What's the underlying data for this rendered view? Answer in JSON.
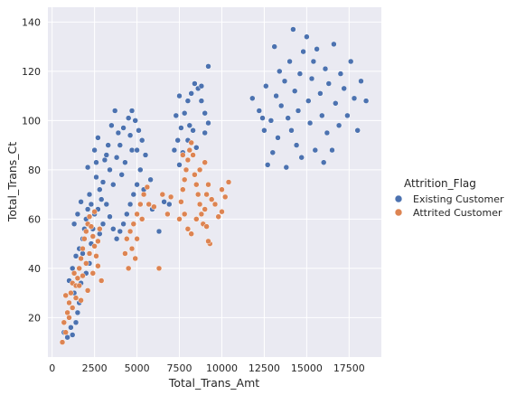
{
  "chart_data": {
    "type": "scatter",
    "title": "",
    "xlabel": "Total_Trans_Amt",
    "ylabel": "Total_Trans_Ct",
    "xlim": [
      -250,
      19400
    ],
    "ylim": [
      4,
      146
    ],
    "xticks": [
      0,
      2500,
      5000,
      7500,
      10000,
      12500,
      15000,
      17500
    ],
    "xtick_labels": [
      "0",
      "2500",
      "5000",
      "7500",
      "10000",
      "12500",
      "15000",
      "17500"
    ],
    "yticks": [
      20,
      40,
      60,
      80,
      100,
      120,
      140
    ],
    "ytick_labels": [
      "20",
      "40",
      "60",
      "80",
      "100",
      "120",
      "140"
    ],
    "grid": true,
    "background": "#eaeaf2",
    "legend": {
      "title": "Attrition_Flag",
      "placement": "right, outside plot",
      "entries": [
        "Existing Customer",
        "Attrited Customer"
      ]
    },
    "series": [
      {
        "name": "Existing Customer",
        "color": "#4c72b0",
        "points": [
          [
            700,
            14
          ],
          [
            900,
            12
          ],
          [
            1100,
            16
          ],
          [
            1200,
            13
          ],
          [
            1400,
            18
          ],
          [
            1500,
            22
          ],
          [
            1600,
            26
          ],
          [
            1300,
            30
          ],
          [
            1000,
            35
          ],
          [
            1200,
            40
          ],
          [
            1400,
            45
          ],
          [
            1600,
            48
          ],
          [
            1800,
            52
          ],
          [
            1900,
            56
          ],
          [
            2000,
            60
          ],
          [
            2100,
            64
          ],
          [
            1700,
            67
          ],
          [
            1500,
            62
          ],
          [
            1300,
            58
          ],
          [
            1800,
            46
          ],
          [
            2200,
            42
          ],
          [
            2000,
            38
          ],
          [
            1700,
            34
          ],
          [
            2300,
            50
          ],
          [
            2400,
            56
          ],
          [
            2200,
            70
          ],
          [
            2100,
            81
          ],
          [
            2500,
            88
          ],
          [
            2700,
            93
          ],
          [
            2600,
            77
          ],
          [
            2800,
            72
          ],
          [
            3000,
            75
          ],
          [
            2900,
            68
          ],
          [
            2700,
            64
          ],
          [
            2500,
            62
          ],
          [
            3100,
            84
          ],
          [
            3300,
            90
          ],
          [
            3500,
            98
          ],
          [
            3700,
            104
          ],
          [
            3400,
            80
          ],
          [
            3600,
            74
          ],
          [
            3800,
            85
          ],
          [
            4000,
            90
          ],
          [
            4200,
            97
          ],
          [
            4500,
            101
          ],
          [
            4700,
            104
          ],
          [
            4900,
            100
          ],
          [
            5100,
            96
          ],
          [
            5300,
            92
          ],
          [
            5500,
            86
          ],
          [
            5200,
            80
          ],
          [
            5000,
            74
          ],
          [
            4800,
            70
          ],
          [
            4600,
            66
          ],
          [
            4400,
            62
          ],
          [
            4200,
            58
          ],
          [
            4000,
            55
          ],
          [
            3800,
            52
          ],
          [
            3600,
            56
          ],
          [
            3400,
            61
          ],
          [
            3200,
            66
          ],
          [
            3000,
            58
          ],
          [
            2800,
            54
          ],
          [
            4100,
            78
          ],
          [
            4300,
            83
          ],
          [
            4700,
            88
          ],
          [
            5400,
            72
          ],
          [
            5800,
            76
          ],
          [
            5900,
            64
          ],
          [
            3900,
            95
          ],
          [
            4600,
            94
          ],
          [
            5000,
            88
          ],
          [
            2600,
            83
          ],
          [
            3200,
            86
          ],
          [
            2300,
            66
          ],
          [
            6300,
            55
          ],
          [
            6600,
            67
          ],
          [
            6900,
            66
          ],
          [
            7200,
            88
          ],
          [
            7400,
            92
          ],
          [
            7600,
            97
          ],
          [
            7800,
            103
          ],
          [
            8000,
            108
          ],
          [
            8200,
            111
          ],
          [
            8400,
            115
          ],
          [
            8600,
            113
          ],
          [
            8800,
            108
          ],
          [
            9000,
            103
          ],
          [
            9200,
            99
          ],
          [
            8300,
            96
          ],
          [
            8000,
            92
          ],
          [
            7700,
            87
          ],
          [
            7500,
            82
          ],
          [
            8500,
            89
          ],
          [
            9000,
            95
          ],
          [
            9200,
            122
          ],
          [
            8800,
            114
          ],
          [
            7300,
            102
          ],
          [
            7500,
            110
          ],
          [
            8100,
            98
          ],
          [
            11800,
            109
          ],
          [
            12200,
            104
          ],
          [
            12500,
            96
          ],
          [
            12600,
            114
          ],
          [
            12700,
            82
          ],
          [
            12900,
            100
          ],
          [
            13000,
            87
          ],
          [
            13200,
            110
          ],
          [
            13300,
            93
          ],
          [
            13500,
            106
          ],
          [
            13700,
            116
          ],
          [
            13800,
            81
          ],
          [
            13900,
            101
          ],
          [
            14000,
            124
          ],
          [
            14100,
            96
          ],
          [
            14200,
            137
          ],
          [
            14300,
            112
          ],
          [
            14400,
            90
          ],
          [
            14500,
            104
          ],
          [
            14600,
            119
          ],
          [
            14800,
            128
          ],
          [
            15000,
            134
          ],
          [
            15100,
            108
          ],
          [
            15200,
            99
          ],
          [
            15300,
            117
          ],
          [
            15500,
            88
          ],
          [
            15600,
            129
          ],
          [
            15800,
            111
          ],
          [
            15900,
            102
          ],
          [
            16100,
            121
          ],
          [
            16200,
            95
          ],
          [
            16300,
            115
          ],
          [
            16500,
            88
          ],
          [
            16600,
            131
          ],
          [
            16700,
            107
          ],
          [
            16900,
            98
          ],
          [
            17000,
            119
          ],
          [
            17200,
            113
          ],
          [
            17400,
            102
          ],
          [
            17600,
            124
          ],
          [
            17800,
            109
          ],
          [
            18000,
            96
          ],
          [
            18200,
            116
          ],
          [
            18500,
            108
          ],
          [
            16000,
            83
          ],
          [
            14700,
            85
          ],
          [
            13400,
            120
          ],
          [
            12400,
            101
          ],
          [
            13100,
            130
          ],
          [
            15400,
            124
          ]
        ]
      },
      {
        "name": "Attrited Customer",
        "color": "#dd8452",
        "points": [
          [
            600,
            10
          ],
          [
            800,
            14
          ],
          [
            700,
            18
          ],
          [
            900,
            22
          ],
          [
            1000,
            26
          ],
          [
            800,
            29
          ],
          [
            1100,
            30
          ],
          [
            1200,
            34
          ],
          [
            1300,
            38
          ],
          [
            1400,
            33
          ],
          [
            1500,
            36
          ],
          [
            1600,
            40
          ],
          [
            1700,
            44
          ],
          [
            1800,
            48
          ],
          [
            1900,
            52
          ],
          [
            2000,
            55
          ],
          [
            2100,
            58
          ],
          [
            2200,
            61
          ],
          [
            2300,
            57
          ],
          [
            2400,
            53
          ],
          [
            2500,
            49
          ],
          [
            2600,
            45
          ],
          [
            2700,
            51
          ],
          [
            2800,
            56
          ],
          [
            2200,
            46
          ],
          [
            2000,
            42
          ],
          [
            1800,
            37
          ],
          [
            1600,
            33
          ],
          [
            1400,
            28
          ],
          [
            1200,
            24
          ],
          [
            1000,
            20
          ],
          [
            2500,
            63
          ],
          [
            2700,
            41
          ],
          [
            2900,
            35
          ],
          [
            2100,
            31
          ],
          [
            1700,
            27
          ],
          [
            2400,
            38
          ],
          [
            4400,
            52
          ],
          [
            4600,
            55
          ],
          [
            4800,
            58
          ],
          [
            5000,
            62
          ],
          [
            5200,
            66
          ],
          [
            5400,
            70
          ],
          [
            5600,
            73
          ],
          [
            4700,
            48
          ],
          [
            4900,
            44
          ],
          [
            4500,
            40
          ],
          [
            5300,
            60
          ],
          [
            4300,
            46
          ],
          [
            5000,
            52
          ],
          [
            6300,
            40
          ],
          [
            6800,
            62
          ],
          [
            7000,
            69
          ],
          [
            6500,
            70
          ],
          [
            5700,
            66
          ],
          [
            6000,
            65
          ],
          [
            7500,
            60
          ],
          [
            7600,
            67
          ],
          [
            7700,
            72
          ],
          [
            7800,
            76
          ],
          [
            7900,
            80
          ],
          [
            8000,
            84
          ],
          [
            8100,
            88
          ],
          [
            8200,
            91
          ],
          [
            8300,
            86
          ],
          [
            8400,
            78
          ],
          [
            8500,
            74
          ],
          [
            8600,
            70
          ],
          [
            8700,
            66
          ],
          [
            8800,
            62
          ],
          [
            8900,
            58
          ],
          [
            9000,
            64
          ],
          [
            9100,
            70
          ],
          [
            9200,
            74
          ],
          [
            9400,
            68
          ],
          [
            9600,
            66
          ],
          [
            9800,
            61
          ],
          [
            10000,
            63
          ],
          [
            10200,
            69
          ],
          [
            10400,
            75
          ],
          [
            8000,
            56
          ],
          [
            8200,
            54
          ],
          [
            7800,
            62
          ],
          [
            9300,
            50
          ],
          [
            9200,
            51
          ],
          [
            9100,
            57
          ],
          [
            10000,
            72
          ],
          [
            8700,
            80
          ],
          [
            9000,
            83
          ],
          [
            7700,
            86
          ],
          [
            8500,
            60
          ]
        ]
      }
    ]
  }
}
